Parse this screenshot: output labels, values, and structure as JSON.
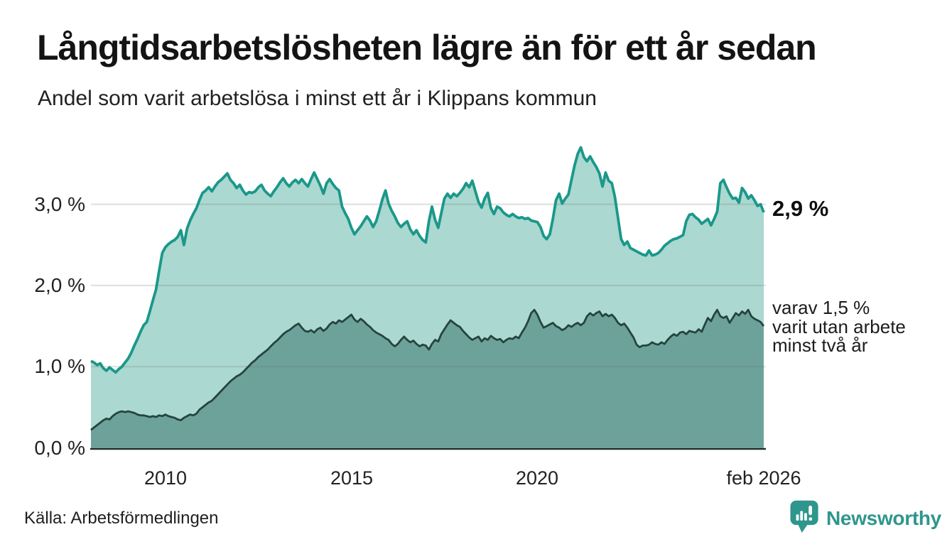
{
  "header": {
    "title": "Långtidsarbetslösheten lägre än för ett år sedan",
    "subtitle": "Andel som varit arbetslösa i minst ett år i Klippans kommun"
  },
  "chart_data": {
    "type": "area",
    "title": "Långtidsarbetslösheten lägre än för ett år sedan",
    "subtitle": "Andel som varit arbetslösa i minst ett år i Klippans kommun",
    "unit": "%",
    "grid": "horizontal",
    "x_start_year": 2008.0,
    "x_step": "monthly",
    "x_end_label": "feb 2026",
    "ylim": [
      0,
      3.85
    ],
    "y_ticks": [
      {
        "label": "0,0 %",
        "value": 0
      },
      {
        "label": "1,0 %",
        "value": 1
      },
      {
        "label": "2,0 %",
        "value": 2
      },
      {
        "label": "3,0 %",
        "value": 3
      }
    ],
    "x_ticks": [
      {
        "label": "2010",
        "year": 2010.0
      },
      {
        "label": "2015",
        "year": 2015.0
      },
      {
        "label": "2020",
        "year": 2020.0
      },
      {
        "label": "feb 2026",
        "year": 2026.083
      }
    ],
    "end_values": {
      "minst_ett_ar": 2.9,
      "minst_tva_ar": 1.5
    },
    "series": [
      {
        "name": "Andel arbetslösa minst ett år",
        "line_color": "#1a988a",
        "fill_color": "#abd8d0",
        "end_label": "2,9 %",
        "values": [
          1.07,
          1.05,
          1.02,
          1.04,
          0.98,
          0.95,
          0.99,
          0.96,
          0.93,
          0.97,
          1.0,
          1.05,
          1.1,
          1.17,
          1.26,
          1.34,
          1.43,
          1.51,
          1.55,
          1.68,
          1.82,
          1.95,
          2.18,
          2.4,
          2.47,
          2.51,
          2.54,
          2.56,
          2.6,
          2.68,
          2.5,
          2.7,
          2.8,
          2.88,
          2.95,
          3.05,
          3.14,
          3.17,
          3.21,
          3.16,
          3.22,
          3.27,
          3.3,
          3.34,
          3.38,
          3.3,
          3.26,
          3.2,
          3.24,
          3.17,
          3.12,
          3.15,
          3.14,
          3.16,
          3.21,
          3.24,
          3.17,
          3.13,
          3.1,
          3.16,
          3.21,
          3.27,
          3.32,
          3.26,
          3.22,
          3.27,
          3.3,
          3.26,
          3.31,
          3.26,
          3.22,
          3.31,
          3.39,
          3.31,
          3.23,
          3.13,
          3.26,
          3.31,
          3.25,
          3.2,
          3.17,
          2.97,
          2.89,
          2.82,
          2.71,
          2.63,
          2.68,
          2.73,
          2.79,
          2.85,
          2.8,
          2.72,
          2.79,
          2.92,
          3.06,
          3.17,
          3.01,
          2.92,
          2.85,
          2.77,
          2.72,
          2.76,
          2.79,
          2.69,
          2.63,
          2.68,
          2.61,
          2.56,
          2.53,
          2.79,
          2.97,
          2.81,
          2.71,
          2.89,
          3.07,
          3.13,
          3.08,
          3.13,
          3.1,
          3.14,
          3.19,
          3.26,
          3.21,
          3.29,
          3.16,
          3.03,
          2.96,
          3.07,
          3.14,
          2.95,
          2.88,
          2.97,
          2.95,
          2.9,
          2.87,
          2.85,
          2.88,
          2.85,
          2.83,
          2.84,
          2.82,
          2.83,
          2.8,
          2.79,
          2.78,
          2.72,
          2.61,
          2.57,
          2.63,
          2.82,
          3.05,
          3.13,
          3.01,
          3.07,
          3.12,
          3.3,
          3.48,
          3.62,
          3.7,
          3.58,
          3.53,
          3.59,
          3.52,
          3.46,
          3.38,
          3.22,
          3.39,
          3.29,
          3.26,
          3.09,
          2.83,
          2.57,
          2.5,
          2.54,
          2.46,
          2.44,
          2.42,
          2.4,
          2.38,
          2.37,
          2.43,
          2.37,
          2.38,
          2.4,
          2.44,
          2.49,
          2.52,
          2.55,
          2.57,
          2.58,
          2.6,
          2.62,
          2.79,
          2.87,
          2.88,
          2.84,
          2.81,
          2.76,
          2.79,
          2.82,
          2.74,
          2.82,
          2.91,
          3.26,
          3.3,
          3.21,
          3.13,
          3.07,
          3.08,
          3.02,
          3.2,
          3.15,
          3.07,
          3.11,
          3.05,
          2.98,
          3.0,
          2.9
        ]
      },
      {
        "name": "varav utan arbete minst två år",
        "line_color": "#25443f",
        "fill_color": "#6da29b",
        "end_label_lines": [
          "varav 1,5 %",
          "varit utan arbete",
          "minst två år"
        ],
        "values": [
          0.22,
          0.25,
          0.28,
          0.31,
          0.34,
          0.36,
          0.35,
          0.39,
          0.42,
          0.44,
          0.45,
          0.44,
          0.45,
          0.44,
          0.43,
          0.41,
          0.4,
          0.4,
          0.39,
          0.38,
          0.39,
          0.38,
          0.4,
          0.39,
          0.41,
          0.39,
          0.38,
          0.37,
          0.35,
          0.34,
          0.37,
          0.39,
          0.41,
          0.4,
          0.42,
          0.47,
          0.5,
          0.53,
          0.56,
          0.58,
          0.62,
          0.66,
          0.7,
          0.74,
          0.78,
          0.82,
          0.85,
          0.88,
          0.9,
          0.93,
          0.97,
          1.01,
          1.05,
          1.08,
          1.12,
          1.15,
          1.18,
          1.21,
          1.25,
          1.29,
          1.32,
          1.36,
          1.4,
          1.43,
          1.45,
          1.48,
          1.51,
          1.53,
          1.48,
          1.44,
          1.43,
          1.45,
          1.42,
          1.46,
          1.48,
          1.44,
          1.47,
          1.52,
          1.55,
          1.53,
          1.57,
          1.55,
          1.58,
          1.61,
          1.64,
          1.58,
          1.55,
          1.59,
          1.56,
          1.52,
          1.49,
          1.45,
          1.42,
          1.4,
          1.38,
          1.35,
          1.33,
          1.28,
          1.25,
          1.28,
          1.33,
          1.37,
          1.33,
          1.3,
          1.32,
          1.28,
          1.25,
          1.27,
          1.26,
          1.21,
          1.28,
          1.33,
          1.31,
          1.4,
          1.46,
          1.52,
          1.57,
          1.54,
          1.51,
          1.49,
          1.44,
          1.4,
          1.36,
          1.33,
          1.35,
          1.37,
          1.31,
          1.35,
          1.33,
          1.38,
          1.35,
          1.33,
          1.34,
          1.3,
          1.33,
          1.35,
          1.34,
          1.37,
          1.35,
          1.42,
          1.48,
          1.56,
          1.66,
          1.7,
          1.64,
          1.55,
          1.48,
          1.5,
          1.52,
          1.54,
          1.5,
          1.48,
          1.45,
          1.47,
          1.51,
          1.49,
          1.52,
          1.54,
          1.51,
          1.54,
          1.62,
          1.66,
          1.63,
          1.66,
          1.68,
          1.62,
          1.65,
          1.62,
          1.64,
          1.6,
          1.54,
          1.51,
          1.53,
          1.48,
          1.42,
          1.36,
          1.27,
          1.24,
          1.26,
          1.26,
          1.27,
          1.3,
          1.28,
          1.27,
          1.3,
          1.28,
          1.33,
          1.37,
          1.4,
          1.38,
          1.42,
          1.43,
          1.4,
          1.44,
          1.43,
          1.42,
          1.46,
          1.43,
          1.52,
          1.6,
          1.56,
          1.64,
          1.7,
          1.62,
          1.6,
          1.62,
          1.54,
          1.6,
          1.66,
          1.63,
          1.68,
          1.65,
          1.7,
          1.62,
          1.59,
          1.57,
          1.55,
          1.5
        ]
      }
    ]
  },
  "source": {
    "label": "Källa: Arbetsförmedlingen"
  },
  "branding": {
    "name": "Newsworthy",
    "color": "#2e968c"
  }
}
